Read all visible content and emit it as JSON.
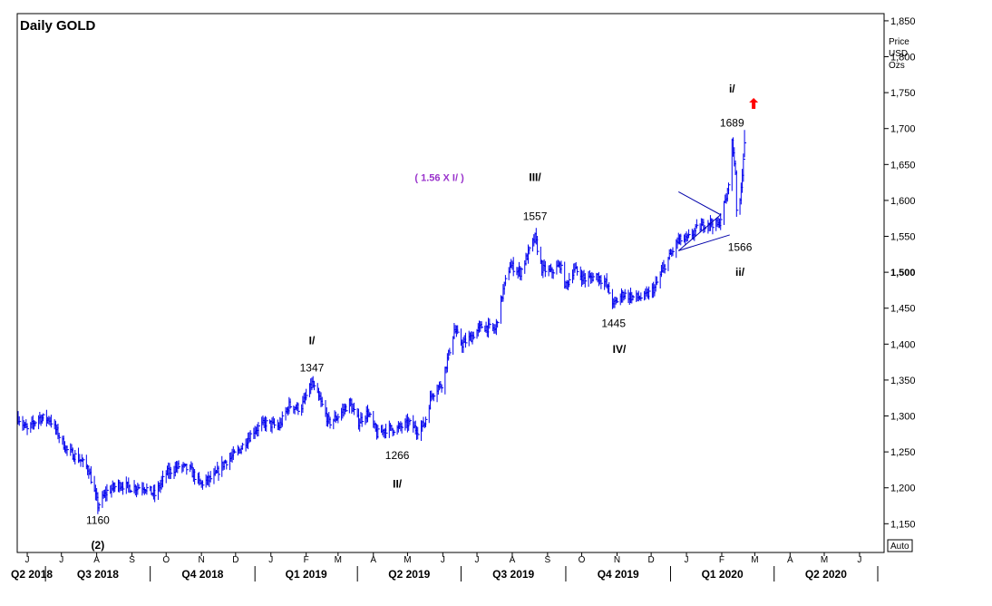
{
  "chart_data": {
    "type": "line",
    "title": "Daily  GOLD",
    "ylabel_lines": [
      "Price",
      "USD",
      "Ozs"
    ],
    "ylim": [
      1110,
      1860
    ],
    "y_ticks": [
      1150,
      1200,
      1250,
      1300,
      1350,
      1400,
      1450,
      1500,
      1550,
      1600,
      1650,
      1700,
      1750,
      1800,
      1850
    ],
    "y_tick_labels": [
      "1,150",
      "1,200",
      "1,250",
      "1,300",
      "1,350",
      "1,400",
      "1,450",
      "1,500",
      "1,550",
      "1,600",
      "1,650",
      "1,700",
      "1,750",
      "1,800",
      "1,850"
    ],
    "y_bold_tick": "1,500",
    "auto_label": "Auto",
    "x_range": [
      "2018-06-07",
      "2020-07-01"
    ],
    "month_ticks": [
      {
        "date": "2018-06-15",
        "label": "J"
      },
      {
        "date": "2018-07-15",
        "label": "J"
      },
      {
        "date": "2018-08-15",
        "label": "A"
      },
      {
        "date": "2018-09-15",
        "label": "S"
      },
      {
        "date": "2018-10-15",
        "label": "O"
      },
      {
        "date": "2018-11-15",
        "label": "N"
      },
      {
        "date": "2018-12-15",
        "label": "D"
      },
      {
        "date": "2019-01-15",
        "label": "J"
      },
      {
        "date": "2019-02-15",
        "label": "F"
      },
      {
        "date": "2019-03-15",
        "label": "M"
      },
      {
        "date": "2019-04-15",
        "label": "A"
      },
      {
        "date": "2019-05-15",
        "label": "M"
      },
      {
        "date": "2019-06-15",
        "label": "J"
      },
      {
        "date": "2019-07-15",
        "label": "J"
      },
      {
        "date": "2019-08-15",
        "label": "A"
      },
      {
        "date": "2019-09-15",
        "label": "S"
      },
      {
        "date": "2019-10-15",
        "label": "O"
      },
      {
        "date": "2019-11-15",
        "label": "N"
      },
      {
        "date": "2019-12-15",
        "label": "D"
      },
      {
        "date": "2020-01-15",
        "label": "J"
      },
      {
        "date": "2020-02-15",
        "label": "F"
      },
      {
        "date": "2020-03-15",
        "label": "M"
      },
      {
        "date": "2020-04-15",
        "label": "A"
      },
      {
        "date": "2020-05-15",
        "label": "M"
      },
      {
        "date": "2020-06-15",
        "label": "J"
      }
    ],
    "quarters": [
      {
        "label": "Q2 2018",
        "start": "2018-04-01",
        "end": "2018-07-01"
      },
      {
        "label": "Q3 2018",
        "start": "2018-07-01",
        "end": "2018-10-01"
      },
      {
        "label": "Q4 2018",
        "start": "2018-10-01",
        "end": "2019-01-01"
      },
      {
        "label": "Q1 2019",
        "start": "2019-01-01",
        "end": "2019-04-01"
      },
      {
        "label": "Q2 2019",
        "start": "2019-04-01",
        "end": "2019-07-01"
      },
      {
        "label": "Q3 2019",
        "start": "2019-07-01",
        "end": "2019-10-01"
      },
      {
        "label": "Q4 2019",
        "start": "2019-10-01",
        "end": "2020-01-01"
      },
      {
        "label": "Q1 2020",
        "start": "2020-01-01",
        "end": "2020-04-01"
      },
      {
        "label": "Q2 2020",
        "start": "2020-04-01",
        "end": "2020-07-01"
      }
    ],
    "series": [
      {
        "style": "ohlc-bars",
        "color": "#0000ee",
        "points": [
          {
            "date": "2018-06-07",
            "close": 1298
          },
          {
            "date": "2018-06-15",
            "close": 1280
          },
          {
            "date": "2018-06-25",
            "close": 1298
          },
          {
            "date": "2018-07-05",
            "close": 1295
          },
          {
            "date": "2018-07-12",
            "close": 1275
          },
          {
            "date": "2018-07-20",
            "close": 1252
          },
          {
            "date": "2018-07-31",
            "close": 1240
          },
          {
            "date": "2018-08-08",
            "close": 1225
          },
          {
            "date": "2018-08-16",
            "close": 1175
          },
          {
            "date": "2018-08-24",
            "close": 1195
          },
          {
            "date": "2018-09-04",
            "close": 1205
          },
          {
            "date": "2018-09-14",
            "close": 1200
          },
          {
            "date": "2018-09-25",
            "close": 1202
          },
          {
            "date": "2018-10-05",
            "close": 1190
          },
          {
            "date": "2018-10-15",
            "close": 1220
          },
          {
            "date": "2018-10-26",
            "close": 1230
          },
          {
            "date": "2018-11-05",
            "close": 1225
          },
          {
            "date": "2018-11-14",
            "close": 1205
          },
          {
            "date": "2018-11-26",
            "close": 1215
          },
          {
            "date": "2018-12-05",
            "close": 1235
          },
          {
            "date": "2018-12-17",
            "close": 1250
          },
          {
            "date": "2018-12-31",
            "close": 1280
          },
          {
            "date": "2019-01-10",
            "close": 1290
          },
          {
            "date": "2019-01-22",
            "close": 1285
          },
          {
            "date": "2019-01-31",
            "close": 1315
          },
          {
            "date": "2019-02-10",
            "close": 1310
          },
          {
            "date": "2019-02-20",
            "close": 1345
          },
          {
            "date": "2019-02-28",
            "close": 1318
          },
          {
            "date": "2019-03-07",
            "close": 1290
          },
          {
            "date": "2019-03-15",
            "close": 1300
          },
          {
            "date": "2019-03-25",
            "close": 1318
          },
          {
            "date": "2019-04-02",
            "close": 1292
          },
          {
            "date": "2019-04-10",
            "close": 1305
          },
          {
            "date": "2019-04-18",
            "close": 1275
          },
          {
            "date": "2019-04-26",
            "close": 1282
          },
          {
            "date": "2019-05-06",
            "close": 1282
          },
          {
            "date": "2019-05-16",
            "close": 1290
          },
          {
            "date": "2019-05-24",
            "close": 1280
          },
          {
            "date": "2019-05-30",
            "close": 1290
          },
          {
            "date": "2019-06-05",
            "close": 1330
          },
          {
            "date": "2019-06-14",
            "close": 1345
          },
          {
            "date": "2019-06-20",
            "close": 1385
          },
          {
            "date": "2019-06-25",
            "close": 1420
          },
          {
            "date": "2019-07-02",
            "close": 1400
          },
          {
            "date": "2019-07-10",
            "close": 1410
          },
          {
            "date": "2019-07-19",
            "close": 1425
          },
          {
            "date": "2019-07-31",
            "close": 1420
          },
          {
            "date": "2019-08-07",
            "close": 1475
          },
          {
            "date": "2019-08-13",
            "close": 1510
          },
          {
            "date": "2019-08-22",
            "close": 1500
          },
          {
            "date": "2019-08-30",
            "close": 1530
          },
          {
            "date": "2019-09-04",
            "close": 1548
          },
          {
            "date": "2019-09-10",
            "close": 1505
          },
          {
            "date": "2019-09-18",
            "close": 1500
          },
          {
            "date": "2019-09-26",
            "close": 1510
          },
          {
            "date": "2019-10-01",
            "close": 1480
          },
          {
            "date": "2019-10-08",
            "close": 1505
          },
          {
            "date": "2019-10-18",
            "close": 1490
          },
          {
            "date": "2019-10-28",
            "close": 1495
          },
          {
            "date": "2019-11-05",
            "close": 1485
          },
          {
            "date": "2019-11-12",
            "close": 1455
          },
          {
            "date": "2019-11-20",
            "close": 1470
          },
          {
            "date": "2019-11-29",
            "close": 1465
          },
          {
            "date": "2019-12-09",
            "close": 1465
          },
          {
            "date": "2019-12-18",
            "close": 1478
          },
          {
            "date": "2019-12-27",
            "close": 1510
          },
          {
            "date": "2020-01-08",
            "close": 1545
          },
          {
            "date": "2020-01-15",
            "close": 1545
          },
          {
            "date": "2020-01-24",
            "close": 1560
          },
          {
            "date": "2020-02-03",
            "close": 1570
          },
          {
            "date": "2020-02-12",
            "close": 1565
          },
          {
            "date": "2020-02-20",
            "close": 1610
          },
          {
            "date": "2020-02-24",
            "close": 1680
          },
          {
            "date": "2020-02-27",
            "close": 1640
          },
          {
            "date": "2020-02-28",
            "close": 1590
          },
          {
            "date": "2020-03-02",
            "close": 1595
          },
          {
            "date": "2020-03-04",
            "close": 1640
          },
          {
            "date": "2020-03-06",
            "close": 1680
          }
        ]
      }
    ],
    "annotations": [
      {
        "text": "1160",
        "date": "2018-08-16",
        "y": 1150,
        "style": "normal"
      },
      {
        "text": "(2)",
        "date": "2018-08-16",
        "y": 1115,
        "style": "bold"
      },
      {
        "text": "I/",
        "date": "2019-02-20",
        "y": 1400,
        "style": "bold"
      },
      {
        "text": "1347",
        "date": "2019-02-20",
        "y": 1362,
        "style": "normal"
      },
      {
        "text": "1266",
        "date": "2019-05-06",
        "y": 1240,
        "style": "normal"
      },
      {
        "text": "II/",
        "date": "2019-05-06",
        "y": 1200,
        "style": "bold"
      },
      {
        "text": "( 1.56 X  I/ )",
        "date": "2019-06-12",
        "y": 1627,
        "style": "purple"
      },
      {
        "text": "III/",
        "date": "2019-09-04",
        "y": 1627,
        "style": "bold"
      },
      {
        "text": "1557",
        "date": "2019-09-04",
        "y": 1573,
        "style": "normal"
      },
      {
        "text": "1445",
        "date": "2019-11-12",
        "y": 1424,
        "style": "normal"
      },
      {
        "text": "IV/",
        "date": "2019-11-17",
        "y": 1388,
        "style": "bold"
      },
      {
        "text": "i/",
        "date": "2020-02-24",
        "y": 1750,
        "style": "bold"
      },
      {
        "text": "1689",
        "date": "2020-02-24",
        "y": 1703,
        "style": "normal"
      },
      {
        "text": "1566",
        "date": "2020-03-02",
        "y": 1530,
        "style": "normal"
      },
      {
        "text": "ii/",
        "date": "2020-03-02",
        "y": 1495,
        "style": "bold"
      }
    ],
    "triangle": [
      {
        "date": "2020-01-08",
        "y": 1612
      },
      {
        "date": "2020-02-14",
        "y": 1580
      },
      {
        "date": "2020-01-08",
        "y": 1530
      },
      {
        "date": "2020-02-22",
        "y": 1552
      }
    ],
    "arrow": {
      "date": "2020-03-14",
      "y": 1735,
      "color": "#ff0000"
    },
    "grid": false
  }
}
